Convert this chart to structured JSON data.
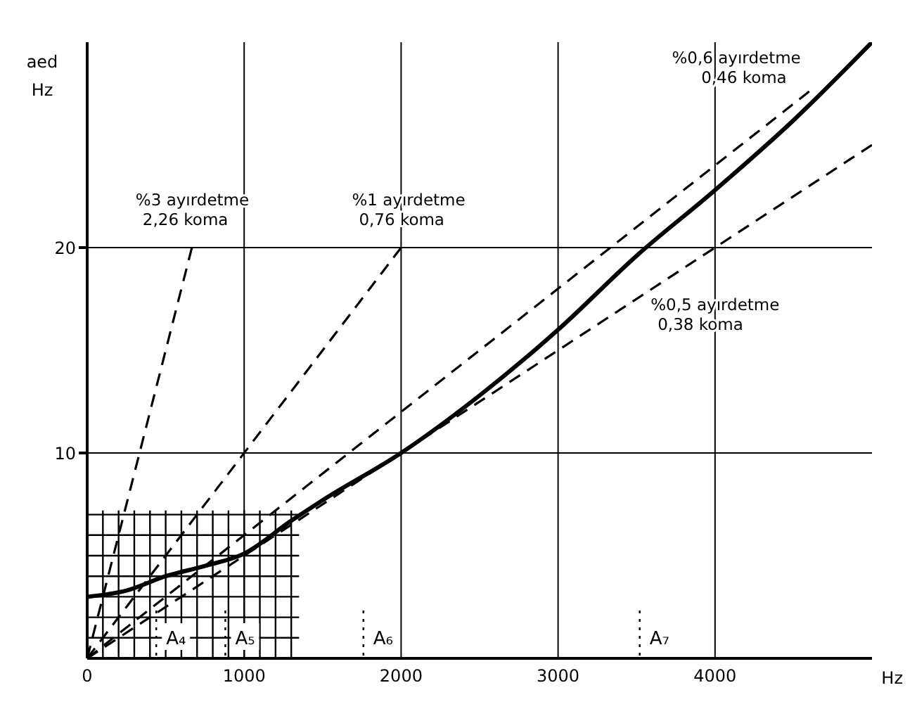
{
  "chart_data": {
    "type": "line",
    "xlabel": "Hz",
    "ylabel": "aed Hz",
    "xlim": [
      0,
      5000
    ],
    "xticks": [
      0,
      1000,
      2000,
      3000,
      4000
    ],
    "ylim": [
      0,
      30
    ],
    "yticks": [
      10,
      20
    ],
    "grid": true,
    "legend": false,
    "marker": "none",
    "series": [
      {
        "color": "#000000",
        "line_style": "solid",
        "x": [
          0,
          250,
          500,
          750,
          1000,
          1300,
          1500,
          2000,
          2500,
          3000,
          3500,
          4000,
          4500,
          5000
        ],
        "values": [
          3,
          3.3,
          4,
          4.5,
          5.1,
          6.7,
          7.7,
          10,
          12.8,
          16,
          19.6,
          22.8,
          26.2,
          30
        ]
      },
      {
        "color": "#000000",
        "line_style": "dashed",
        "x": [
          0,
          667
        ],
        "values": [
          0,
          20
        ]
      },
      {
        "color": "#000000",
        "line_style": "dashed",
        "x": [
          0,
          2000
        ],
        "values": [
          0,
          20
        ]
      },
      {
        "color": "#000000",
        "line_style": "dashed",
        "x": [
          0,
          4600
        ],
        "values": [
          0,
          27.6
        ]
      },
      {
        "color": "#000000",
        "line_style": "dashed",
        "x": [
          0,
          5000
        ],
        "values": [
          0,
          25
        ]
      }
    ],
    "annotations": [
      {
        "text": "%3 ayırdetme 2,26 koma",
        "x": 667,
        "y": 20
      },
      {
        "text": "%1 ayırdetme 0,76 koma",
        "x": 2000,
        "y": 20
      },
      {
        "text": "%0,6 ayırdetme 0,46 koma",
        "x": 4600,
        "y": 27.6
      },
      {
        "text": "%0,5 ayırdetme 0,38 koma",
        "x": 3500,
        "y": 17.5
      }
    ],
    "ref_lines": [
      {
        "axis": "x",
        "value": 440,
        "label": "A₄",
        "line_style": "dotted"
      },
      {
        "axis": "x",
        "value": 880,
        "label": "A₅",
        "line_style": "dotted"
      },
      {
        "axis": "x",
        "value": 1760,
        "label": "A₆",
        "line_style": "dotted"
      },
      {
        "axis": "x",
        "value": 3520,
        "label": "A₇",
        "line_style": "dotted"
      }
    ]
  }
}
